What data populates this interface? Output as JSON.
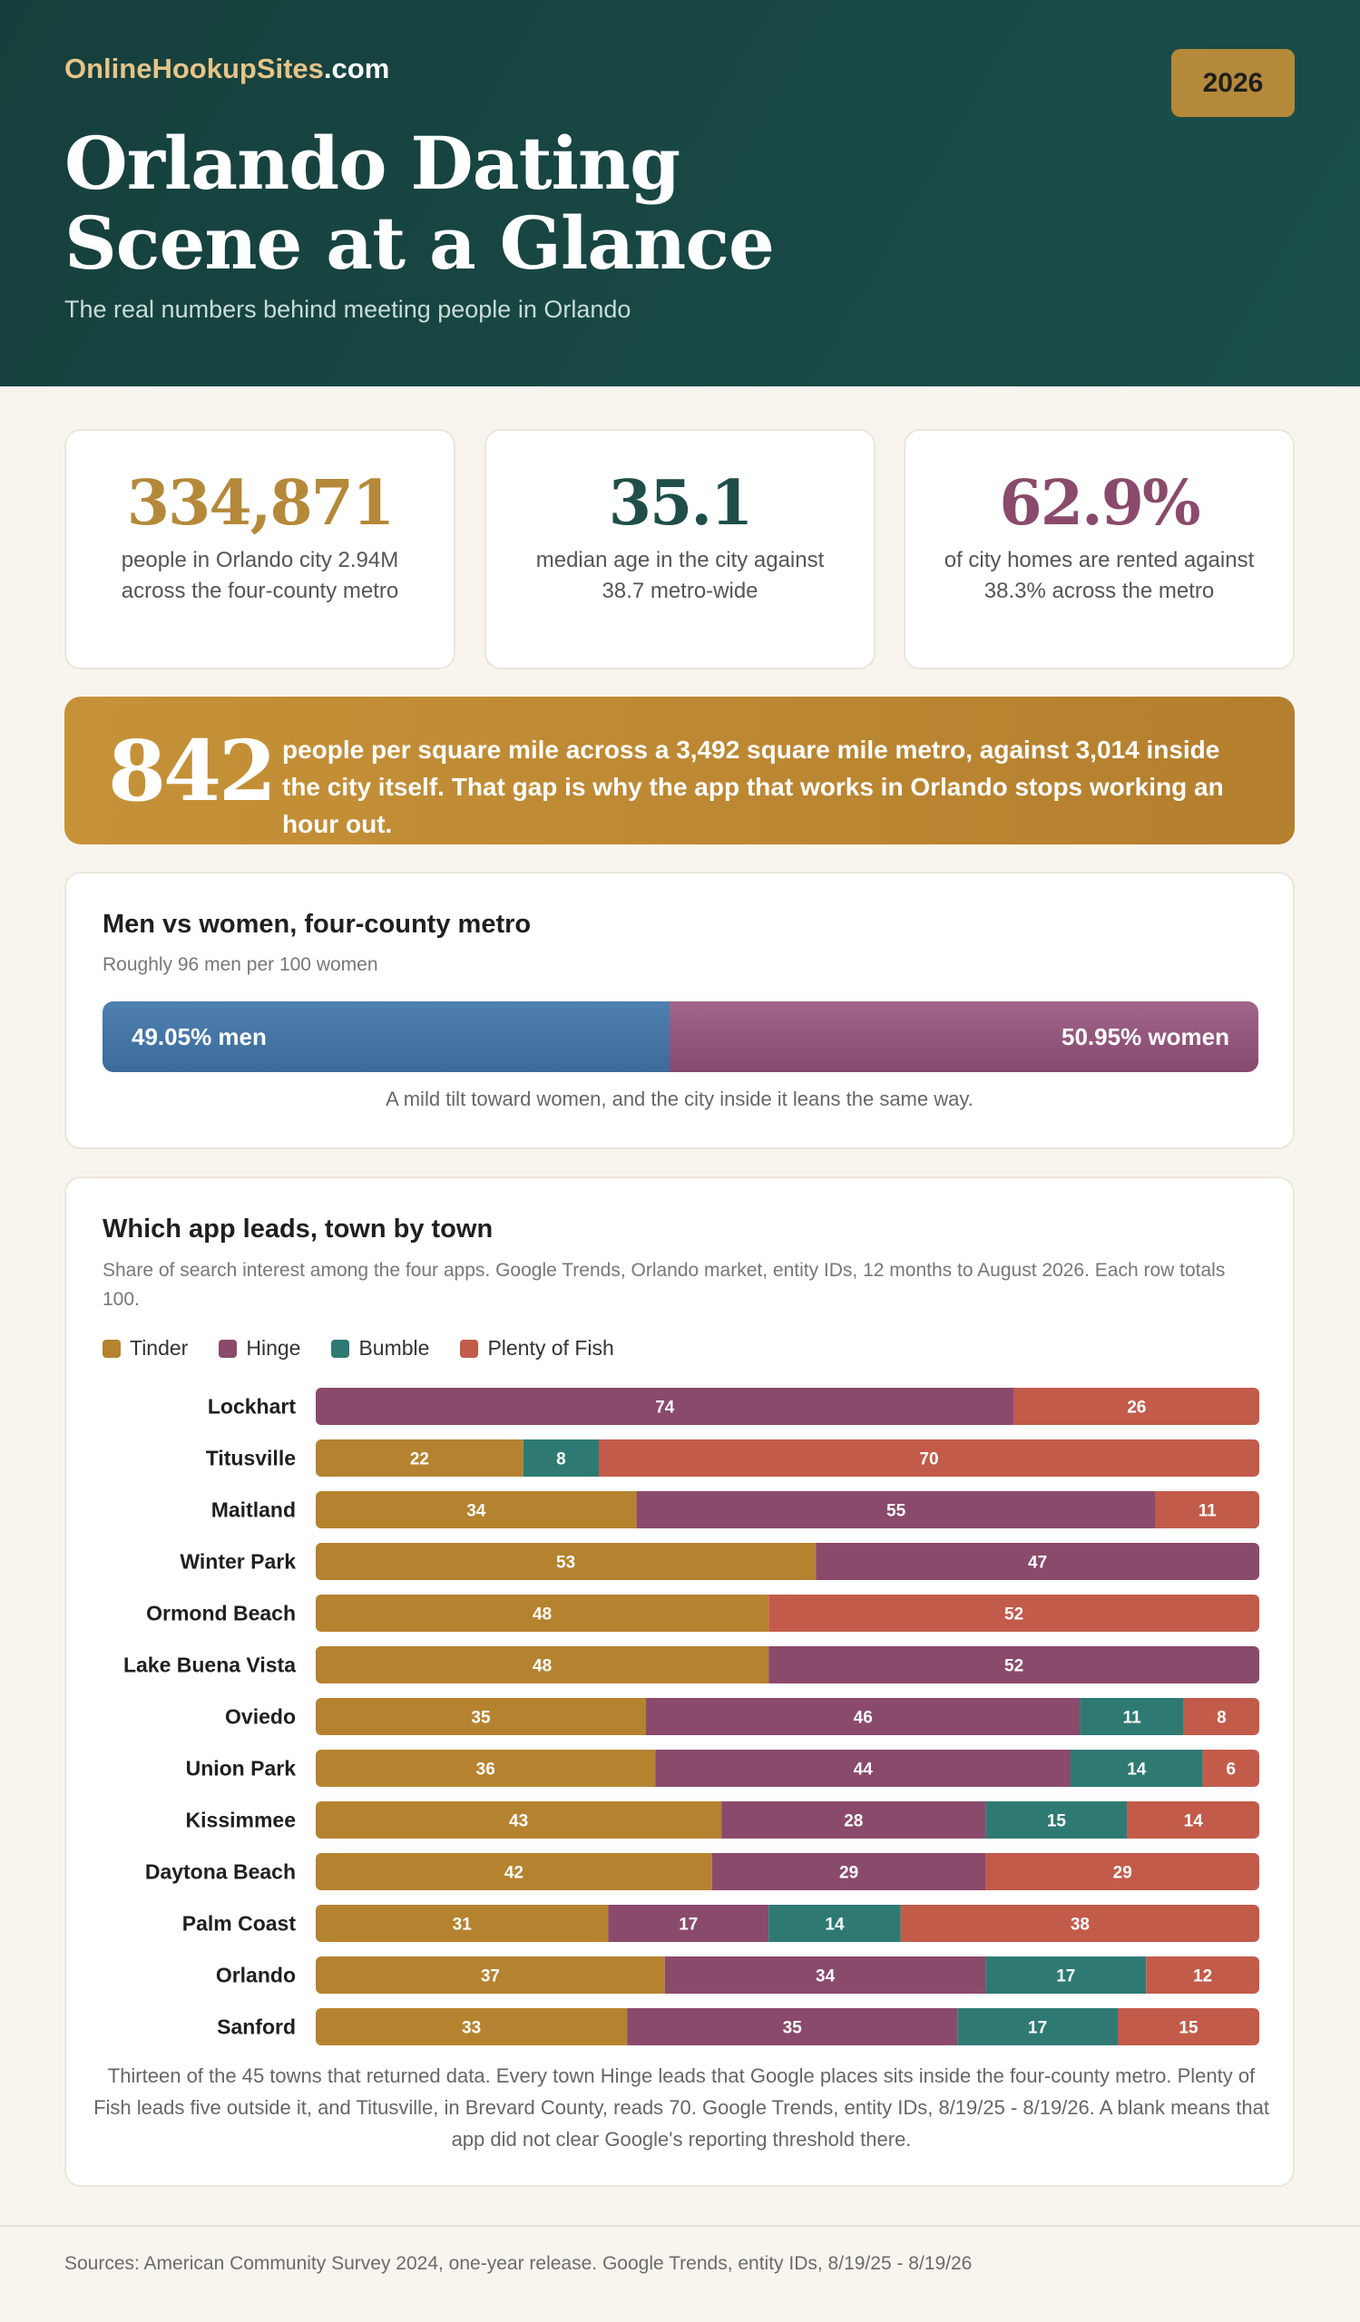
{
  "header": {
    "brand_part1": "OnlineHookupSites",
    "brand_part2": ".com",
    "year": "2026",
    "title_line1": "Orlando Dating",
    "title_line2": "Scene at a Glance",
    "subtitle": "The real numbers behind meeting people in Orlando"
  },
  "stats": [
    {
      "value": "334,871",
      "label": "people in Orlando city 2.94M across the four-county metro",
      "color": "#b5893a"
    },
    {
      "value": "35.1",
      "label": "median age in the city against 38.7 metro-wide",
      "color": "#1f4e49"
    },
    {
      "value": "62.9%",
      "label": "of city homes are rented against 38.3% across the metro",
      "color": "#8a4a6b"
    }
  ],
  "density": {
    "value": "842",
    "text": "people per square mile across a 3,492 square mile metro, against 3,014 inside the city itself. That gap is why the app that works in Orlando stops working an hour out."
  },
  "gender": {
    "title": "Men vs women, four-county metro",
    "subtitle": "Roughly 96 men per 100 women",
    "men_pct": 49.05,
    "women_pct": 50.95,
    "men_label": "49.05% men",
    "women_label": "50.95% women",
    "note": "A mild tilt toward women, and the city inside it leans the same way."
  },
  "apps": {
    "title": "Which app leads, town by town",
    "subtitle": "Share of search interest among the four apps. Google Trends, Orlando market, entity IDs, 12 months to August 2026. Each row totals 100.",
    "footnote": "Thirteen of the 45 towns that returned data. Every town Hinge leads that Google places sits inside the four-county metro. Plenty of Fish leads five outside it, and Titusville, in Brevard County, reads 70. Google Trends, entity IDs, 8/19/25 - 8/19/26. A blank means that app did not clear Google's reporting threshold there."
  },
  "chart_data": {
    "type": "bar",
    "orientation": "horizontal",
    "stacked": true,
    "title": "Which app leads, town by town",
    "xlim": [
      0,
      100
    ],
    "legend_position": "top-left",
    "categories": [
      "Lockhart",
      "Titusville",
      "Maitland",
      "Winter Park",
      "Ormond Beach",
      "Lake Buena Vista",
      "Oviedo",
      "Union Park",
      "Kissimmee",
      "Daytona Beach",
      "Palm Coast",
      "Orlando",
      "Sanford"
    ],
    "series": [
      {
        "name": "Tinder",
        "color": "#b5832f",
        "values": [
          null,
          22,
          34,
          53,
          48,
          48,
          35,
          36,
          43,
          42,
          31,
          37,
          33
        ]
      },
      {
        "name": "Hinge",
        "color": "#8a4a6b",
        "values": [
          74,
          null,
          55,
          47,
          null,
          52,
          46,
          44,
          28,
          29,
          17,
          34,
          35
        ]
      },
      {
        "name": "Bumble",
        "color": "#2e7a73",
        "values": [
          null,
          8,
          null,
          null,
          null,
          null,
          11,
          14,
          15,
          null,
          14,
          17,
          17
        ]
      },
      {
        "name": "Plenty of Fish",
        "color": "#c25b4a",
        "values": [
          26,
          70,
          11,
          null,
          52,
          null,
          8,
          6,
          14,
          29,
          38,
          12,
          15
        ]
      }
    ]
  },
  "footer": {
    "sources": "Sources: American Community Survey 2024, one-year release. Google Trends, entity IDs, 8/19/25 - 8/19/26"
  }
}
